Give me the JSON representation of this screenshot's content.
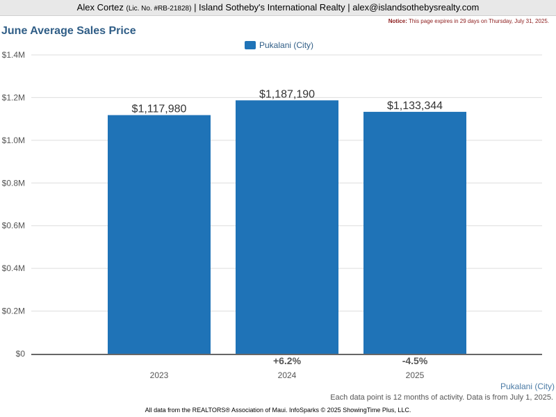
{
  "header": {
    "agent_name": "Alex Cortez",
    "license": "(Lic. No. #RB-21828)",
    "brokerage": "| Island Sotheby's International Realty |",
    "email": "alex@islandsothebysrealty.com"
  },
  "notice": {
    "label": "Notice:",
    "text": "This page expires in 29 days on Thursday, July 31, 2025."
  },
  "chart_data": {
    "type": "bar",
    "title": "June Average Sales Price",
    "categories": [
      "2023",
      "2024",
      "2025"
    ],
    "series": [
      {
        "name": "Pukalani (City)",
        "values": [
          1117980,
          1187190,
          1133344
        ]
      }
    ],
    "data_labels": [
      "$1,117,980",
      "$1,187,190",
      "$1,133,344"
    ],
    "change_labels": [
      "",
      "+6.2%",
      "-4.5%"
    ],
    "yticks": [
      "$0",
      "$0.2M",
      "$0.4M",
      "$0.6M",
      "$0.8M",
      "$1.0M",
      "$1.2M",
      "$1.4M"
    ],
    "ylim": [
      0,
      1400000
    ],
    "grid": true,
    "legend": "top-center",
    "colors": {
      "bar": "#1f73b7",
      "grid": "#dddddd",
      "axis": "#555555"
    }
  },
  "footer": {
    "series_label": "Pukalani (City)",
    "note": "Each data point is 12 months of activity. Data is from July 1, 2025.",
    "source": "All data from the REALTORS® Association of Maui. InfoSparks © 2025 ShowingTime Plus, LLC."
  }
}
